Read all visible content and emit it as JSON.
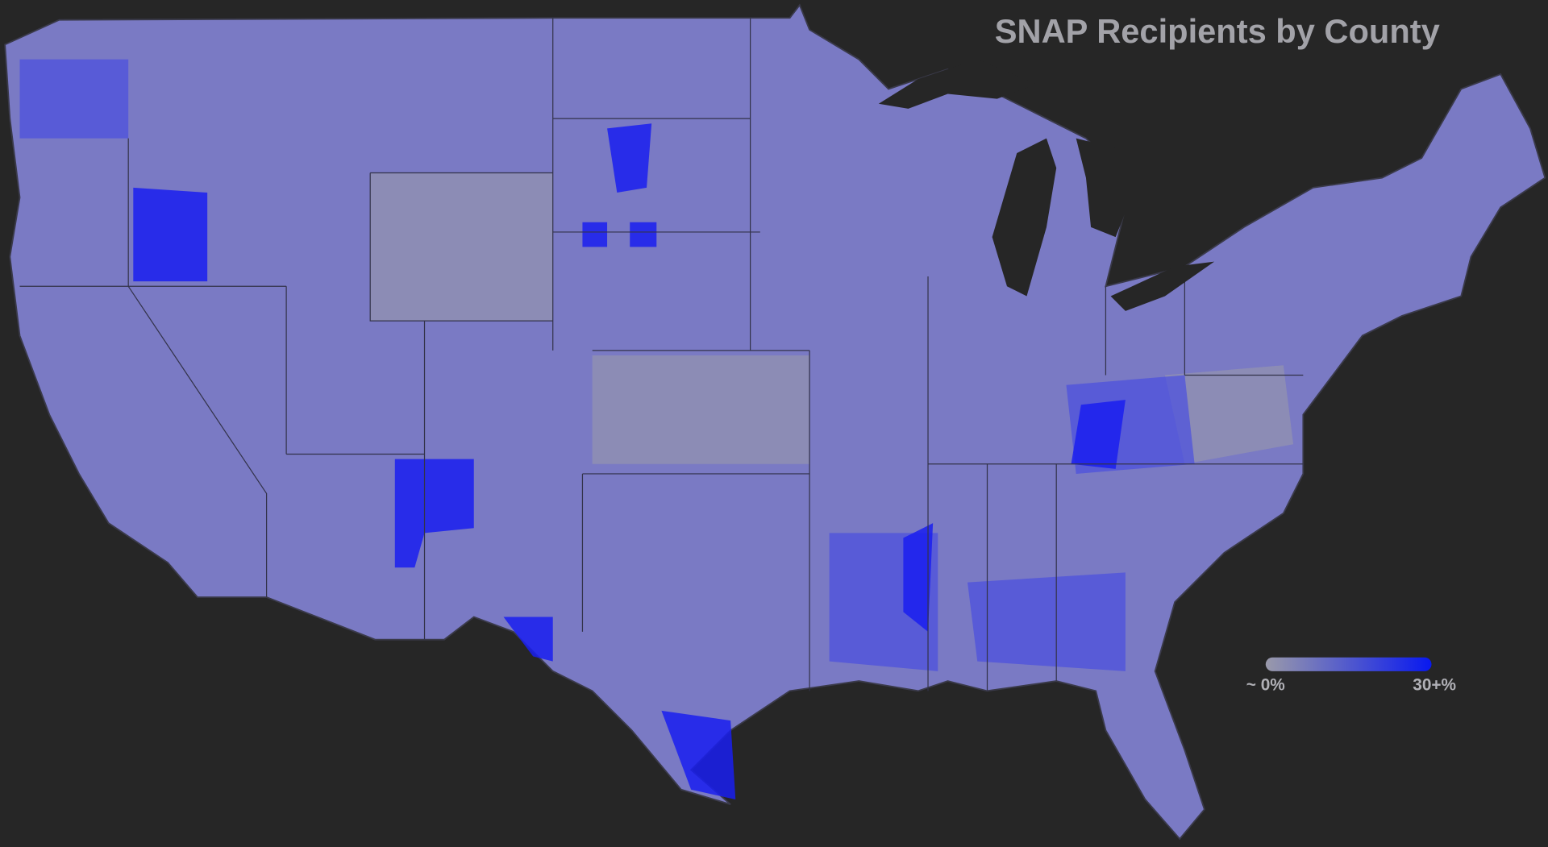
{
  "title": "SNAP Recipients by County",
  "map": {
    "land_color": "#7a7ac4",
    "border_color": "#3a3a4a",
    "background": "#262626"
  },
  "legend": {
    "min_label": "~ 0%",
    "max_label": "30+%",
    "min_color": "#9a9aaa",
    "max_color": "#0818f0"
  }
}
